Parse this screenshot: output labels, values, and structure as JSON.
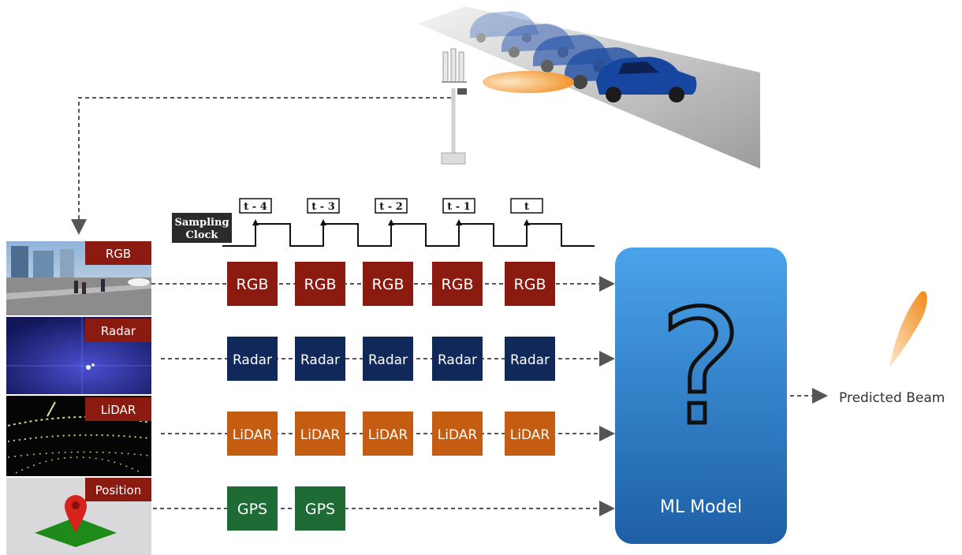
{
  "clock": {
    "label_line1": "Sampling",
    "label_line2": "Clock",
    "ticks": [
      "t - 4",
      "t - 3",
      "t - 2",
      "t - 1",
      "t"
    ]
  },
  "sensors": [
    {
      "label": "RGB"
    },
    {
      "label": "Radar"
    },
    {
      "label": "LiDAR"
    },
    {
      "label": "Position"
    }
  ],
  "rows": [
    {
      "box_label": "RGB",
      "count": 5,
      "color": "#8b1a10",
      "text_color": "#ffffff"
    },
    {
      "box_label": "Radar",
      "count": 5,
      "color": "#10285a",
      "text_color": "#ffffff"
    },
    {
      "box_label": "LiDAR",
      "count": 5,
      "color": "#c45c12",
      "text_color": "#ffffff"
    },
    {
      "box_label": "GPS",
      "count": 2,
      "color": "#1f6b36",
      "text_color": "#ffffff"
    }
  ],
  "model": {
    "symbol": "?",
    "label": "ML Model",
    "color_top": "#4aa3ea",
    "color_bottom": "#1d5fa6"
  },
  "output": {
    "label": "Predicted Beam",
    "beam_color": "#f08a1c"
  },
  "colors": {
    "sensor_tag": "#8b1a10",
    "dashed_line": "#555555",
    "clock_label_bg": "#2b2b2b"
  }
}
